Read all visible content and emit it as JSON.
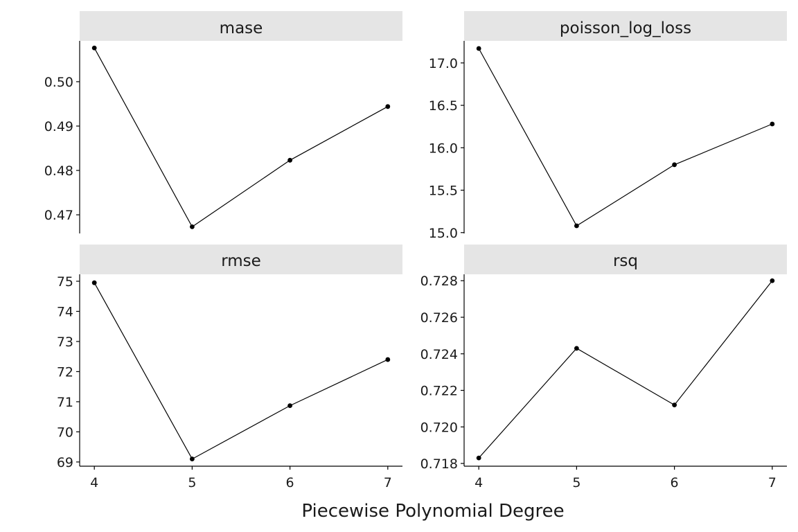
{
  "figure": {
    "xlabel": "Piecewise Polynomial Degree"
  },
  "chart_data": [
    {
      "type": "line",
      "title": "mase",
      "x": [
        4,
        5,
        6,
        7
      ],
      "y": [
        0.5076,
        0.4673,
        0.4823,
        0.4944
      ],
      "xticks": [
        "4",
        "5",
        "6",
        "7"
      ],
      "yticks": [
        0.47,
        0.48,
        0.49,
        0.5
      ],
      "ytick_labels": [
        "0.47",
        "0.48",
        "0.49",
        "0.50"
      ],
      "ylim": [
        0.4658,
        0.5092
      ],
      "xlim": [
        3.85,
        7.15
      ]
    },
    {
      "type": "line",
      "title": "poisson_log_loss",
      "x": [
        4,
        5,
        6,
        7
      ],
      "y": [
        17.17,
        15.08,
        15.8,
        16.28
      ],
      "xticks": [
        "4",
        "5",
        "6",
        "7"
      ],
      "yticks": [
        15.0,
        15.5,
        16.0,
        16.5,
        17.0
      ],
      "ytick_labels": [
        "15.0",
        "15.5",
        "16.0",
        "16.5",
        "17.0"
      ],
      "ylim": [
        14.99,
        17.26
      ],
      "xlim": [
        3.85,
        7.15
      ]
    },
    {
      "type": "line",
      "title": "rmse",
      "x": [
        4,
        5,
        6,
        7
      ],
      "y": [
        74.95,
        69.1,
        70.87,
        72.4
      ],
      "xticks": [
        "4",
        "5",
        "6",
        "7"
      ],
      "yticks": [
        69,
        70,
        71,
        72,
        73,
        74,
        75
      ],
      "ytick_labels": [
        "69",
        "70",
        "71",
        "72",
        "73",
        "74",
        "75"
      ],
      "ylim": [
        68.86,
        75.23
      ],
      "xlim": [
        3.85,
        7.15
      ]
    },
    {
      "type": "line",
      "title": "rsq",
      "x": [
        4,
        5,
        6,
        7
      ],
      "y": [
        0.7183,
        0.7243,
        0.7212,
        0.728
      ],
      "xticks": [
        "4",
        "5",
        "6",
        "7"
      ],
      "yticks": [
        0.718,
        0.72,
        0.722,
        0.724,
        0.726,
        0.728
      ],
      "ytick_labels": [
        "0.718",
        "0.720",
        "0.722",
        "0.724",
        "0.726",
        "0.728"
      ],
      "ylim": [
        0.71785,
        0.72835
      ],
      "xlim": [
        3.85,
        7.15
      ]
    }
  ]
}
